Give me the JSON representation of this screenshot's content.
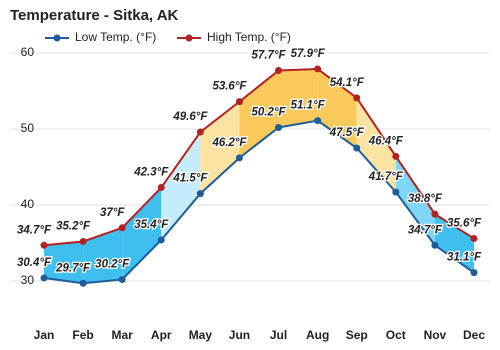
{
  "chart_data": {
    "type": "line",
    "title": "Temperature - Sitka, AK",
    "categories": [
      "Jan",
      "Feb",
      "Mar",
      "Apr",
      "May",
      "Jun",
      "Jul",
      "Aug",
      "Sep",
      "Oct",
      "Nov",
      "Dec"
    ],
    "series": [
      {
        "name": "Low Temp. (°F)",
        "color": "#1f5c99",
        "values": [
          30.4,
          29.7,
          30.2,
          35.4,
          41.5,
          46.2,
          50.2,
          51.1,
          47.5,
          41.7,
          34.7,
          31.1
        ],
        "value_labels": [
          "30.4°F",
          "29.7°F",
          "30.2°F",
          "35.4°F",
          "41.5°F",
          "46.2°F",
          "50.2°F",
          "51.1°F",
          "47.5°F",
          "41.7°F",
          "34.7°F",
          "31.1°F"
        ]
      },
      {
        "name": "High Temp. (°F)",
        "color": "#b22222",
        "values": [
          34.7,
          35.2,
          37,
          42.3,
          49.6,
          53.6,
          57.7,
          57.9,
          54.1,
          46.4,
          38.8,
          35.6
        ],
        "value_labels": [
          "34.7°F",
          "35.2°F",
          "37°F",
          "42.3°F",
          "49.6°F",
          "53.6°F",
          "57.7°F",
          "57.9°F",
          "54.1°F",
          "46.4°F",
          "38.8°F",
          "35.6°F"
        ]
      }
    ],
    "ylim": [
      25,
      60
    ],
    "yticks": [
      30,
      40,
      50,
      60
    ],
    "grid": true
  }
}
